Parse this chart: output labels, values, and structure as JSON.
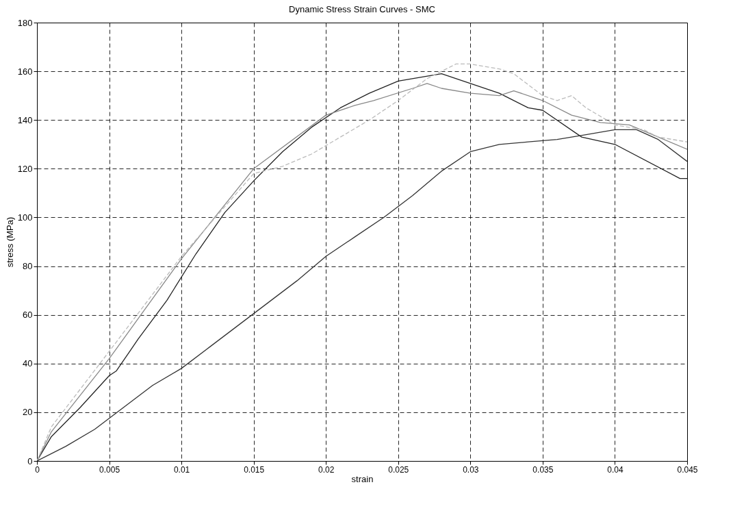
{
  "chart_data": {
    "type": "line",
    "title": "Dynamic Stress Strain Curves - SMC",
    "xlabel": "strain",
    "ylabel": "stress (MPa)",
    "xlim": [
      0,
      0.045
    ],
    "xticks": [
      0,
      0.005,
      0.01,
      0.015,
      0.02,
      0.025,
      0.03,
      0.035,
      0.04,
      0.045
    ],
    "ylim": [
      0,
      180
    ],
    "yticks": [
      0,
      20,
      40,
      60,
      80,
      100,
      120,
      140,
      160,
      180
    ],
    "grid": true,
    "marker": "none",
    "series": [
      {
        "color": "#222222",
        "x": [
          0,
          0.001,
          0.003,
          0.005,
          0.0055,
          0.007,
          0.009,
          0.011,
          0.013,
          0.015,
          0.017,
          0.019,
          0.021,
          0.023,
          0.025,
          0.028,
          0.03,
          0.032,
          0.034,
          0.035,
          0.0377,
          0.04,
          0.0445,
          0.045
        ],
        "values": [
          0,
          10,
          22,
          35,
          37,
          50,
          66,
          85,
          102,
          115,
          127,
          137,
          145,
          151,
          156,
          159,
          155,
          151,
          145,
          144,
          133,
          130,
          116,
          116
        ]
      },
      {
        "color": "#888888",
        "x": [
          0,
          0.001,
          0.005,
          0.01,
          0.015,
          0.02,
          0.022,
          0.0233,
          0.026,
          0.027,
          0.028,
          0.03,
          0.032,
          0.033,
          0.035,
          0.037,
          0.039,
          0.041,
          0.043,
          0.045
        ],
        "values": [
          0,
          12,
          42,
          83,
          120,
          142,
          146,
          148,
          153,
          155,
          153,
          151,
          150,
          152,
          148,
          142,
          139,
          138,
          133,
          128
        ]
      },
      {
        "color": "#bbbbbb",
        "line_style": "dashed",
        "x": [
          0,
          0.001,
          0.005,
          0.01,
          0.015,
          0.017,
          0.019,
          0.021,
          0.023,
          0.025,
          0.027,
          0.029,
          0.03,
          0.032,
          0.033,
          0.035,
          0.036,
          0.037,
          0.038,
          0.04,
          0.042,
          0.043,
          0.045
        ],
        "values": [
          0,
          14,
          45,
          84,
          118,
          121,
          126,
          133,
          140,
          148,
          157,
          163,
          163,
          161,
          159,
          150,
          148,
          150,
          145,
          138,
          136,
          133,
          131
        ]
      },
      {
        "color": "#333333",
        "x": [
          0,
          0.002,
          0.004,
          0.006,
          0.008,
          0.01,
          0.012,
          0.014,
          0.016,
          0.018,
          0.02,
          0.022,
          0.024,
          0.026,
          0.028,
          0.03,
          0.032,
          0.034,
          0.036,
          0.038,
          0.04,
          0.0415,
          0.043,
          0.045
        ],
        "values": [
          0,
          6,
          13,
          22,
          31,
          38,
          47,
          56,
          65,
          74,
          84,
          92,
          100,
          109,
          119,
          127,
          130,
          131,
          132,
          134,
          136,
          136,
          132,
          123
        ]
      }
    ]
  }
}
